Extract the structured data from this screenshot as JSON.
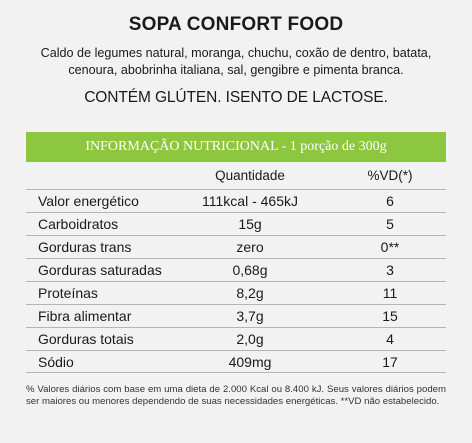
{
  "product": {
    "title": "SOPA CONFORT FOOD",
    "ingredients_line1": "Caldo de legumes natural, moranga, chuchu, coxão de dentro, batata,",
    "ingredients_line2": "cenoura, abobrinha italiana, sal, gengibre e pimenta branca.",
    "warning": "CONTÉM GLÚTEN. ISENTO DE LACTOSE."
  },
  "nutrition": {
    "header": "INFORMAÇÃO NUTRICIONAL - 1 porção de 300g",
    "col_quantity": "Quantidade",
    "col_vd": "%VD(*)",
    "rows": [
      {
        "name": "Valor energético",
        "quantity": "111kcal - 465kJ",
        "vd": "6"
      },
      {
        "name": "Carboidratos",
        "quantity": "15g",
        "vd": "5"
      },
      {
        "name": "Gorduras trans",
        "quantity": "zero",
        "vd": "0**"
      },
      {
        "name": "Gorduras saturadas",
        "quantity": "0,68g",
        "vd": "3"
      },
      {
        "name": "Proteínas",
        "quantity": "8,2g",
        "vd": "11"
      },
      {
        "name": "Fibra alimentar",
        "quantity": "3,7g",
        "vd": "15"
      },
      {
        "name": "Gorduras totais",
        "quantity": "2,0g",
        "vd": "4"
      },
      {
        "name": "Sódio",
        "quantity": "409mg",
        "vd": "17"
      }
    ],
    "footnote": "% Valores diários com base em uma dieta de 2.000 Kcal ou 8.400 kJ. Seus valores diários podem ser maiores ou menores dependendo de suas necessidades energéticas. **VD não estabelecido."
  },
  "colors": {
    "header_green": "#8dc63f",
    "background": "#f2f2f2"
  }
}
